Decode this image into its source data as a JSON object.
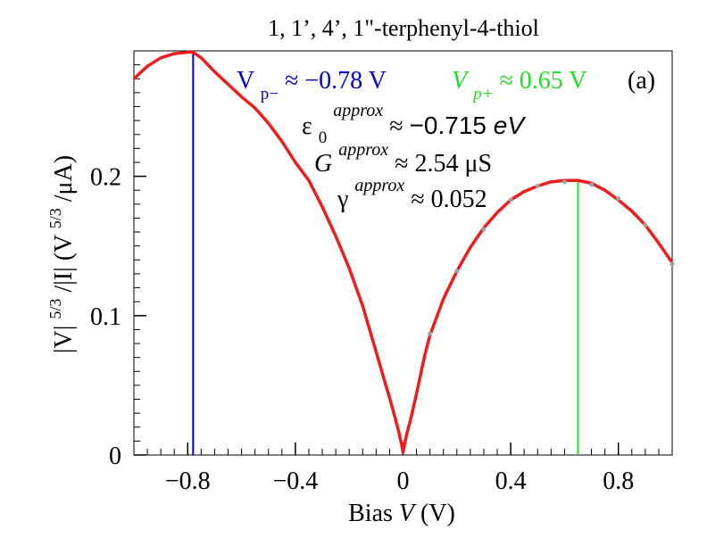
{
  "chart_data": {
    "type": "line",
    "title": "1, 1’, 4’, 1\"-terphenyl-4-thiol",
    "panel_label": "(a)",
    "xlabel": {
      "prefix": "Bias ",
      "var": "V",
      "unit": " (V)"
    },
    "ylabel": {
      "a": "|V|",
      "exp1": "5/3",
      "b": "/|I| (V",
      "exp2": "5/3",
      "c": "/μA)"
    },
    "xlim": [
      -1.0,
      1.0
    ],
    "ylim": [
      0,
      0.29
    ],
    "x_ticks": [
      {
        "value": -0.8,
        "label": "−0.8"
      },
      {
        "value": -0.4,
        "label": "−0.4"
      },
      {
        "value": 0.0,
        "label": "0"
      },
      {
        "value": 0.4,
        "label": "0.4"
      },
      {
        "value": 0.8,
        "label": "0.8"
      }
    ],
    "y_ticks": [
      {
        "value": 0.0,
        "label": "0"
      },
      {
        "value": 0.1,
        "label": "0.1"
      },
      {
        "value": 0.2,
        "label": "0.2"
      }
    ],
    "x_minor_step": 0.05,
    "y_minor_step": 0.01,
    "series": [
      {
        "name": "fit",
        "color": "#ee1c1c",
        "x": [
          -1.0,
          -0.95,
          -0.9,
          -0.85,
          -0.8,
          -0.78,
          -0.75,
          -0.7,
          -0.65,
          -0.6,
          -0.55,
          -0.5,
          -0.45,
          -0.4,
          -0.35,
          -0.3,
          -0.25,
          -0.2,
          -0.15,
          -0.1,
          -0.07,
          -0.05,
          -0.03,
          -0.015,
          -0.005,
          0.0,
          0.005,
          0.015,
          0.03,
          0.05,
          0.08,
          0.1,
          0.15,
          0.2,
          0.25,
          0.3,
          0.35,
          0.4,
          0.45,
          0.5,
          0.55,
          0.6,
          0.65,
          0.7,
          0.75,
          0.8,
          0.85,
          0.9,
          0.95,
          1.0
        ],
        "y": [
          0.27,
          0.279,
          0.285,
          0.288,
          0.289,
          0.289,
          0.285,
          0.275,
          0.266,
          0.257,
          0.249,
          0.238,
          0.225,
          0.21,
          0.197,
          0.178,
          0.157,
          0.134,
          0.107,
          0.074,
          0.054,
          0.041,
          0.027,
          0.016,
          0.007,
          0.002,
          0.007,
          0.016,
          0.027,
          0.044,
          0.071,
          0.086,
          0.112,
          0.132,
          0.149,
          0.163,
          0.174,
          0.183,
          0.189,
          0.193,
          0.196,
          0.197,
          0.197,
          0.195,
          0.19,
          0.183,
          0.175,
          0.165,
          0.152,
          0.138
        ]
      },
      {
        "name": "data",
        "color": "#a0a0a0",
        "x": [
          0.1,
          0.2,
          0.3,
          0.4,
          0.5,
          0.6,
          0.7,
          0.8,
          0.9,
          1.0
        ],
        "y": [
          0.087,
          0.132,
          0.162,
          0.183,
          0.193,
          0.196,
          0.194,
          0.184,
          0.165,
          0.137
        ]
      }
    ],
    "vlines": [
      {
        "x": -0.78,
        "y_top": 0.289,
        "color": "#0000cc"
      },
      {
        "x": 0.65,
        "y_top": 0.197,
        "color": "#22dd22"
      }
    ],
    "annotations": {
      "vp_minus": {
        "sym": "V",
        "sub": "p−",
        "rest": " ≈ −0.78 V",
        "color": "#0000cc"
      },
      "vp_plus": {
        "sym": "V",
        "sub": "p+",
        "rest": " ≈ 0.65 V",
        "color": "#22dd22"
      },
      "eps": {
        "sym": "ε",
        "sub": "0",
        "sup": "approx",
        "rest1": "≈ ",
        "rest2": "−0.715 ",
        "unit": "eV"
      },
      "g": {
        "sym": "G",
        "sup": "approx",
        "rest": "≈ 2.54 μS"
      },
      "gamma": {
        "sym": "γ",
        "sup": "approx",
        "rest": "≈ 0.052"
      }
    }
  }
}
